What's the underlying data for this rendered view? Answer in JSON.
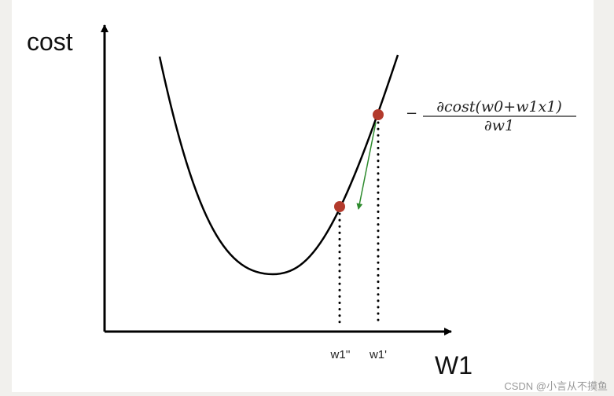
{
  "axes": {
    "y_label": "cost",
    "x_label": "W1"
  },
  "points": [
    {
      "label": "w1''"
    },
    {
      "label": "w1'"
    }
  ],
  "formula": {
    "sign": "−",
    "numerator": "∂cost(w0+w1x1)",
    "denominator": "∂w1"
  },
  "watermark": "CSDN @小言从不摸鱼"
}
